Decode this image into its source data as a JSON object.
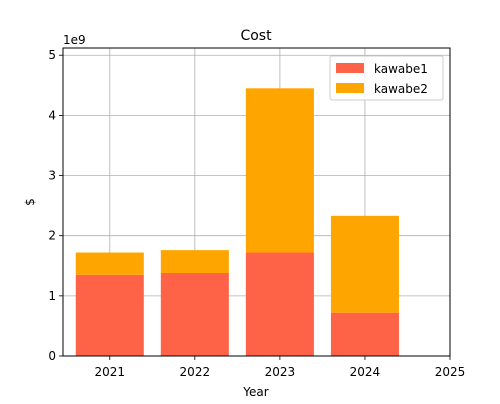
{
  "chart_data": {
    "type": "bar",
    "stacked": true,
    "title": "Cost",
    "xlabel": "Year",
    "ylabel": "$",
    "y_offset_label": "1e9",
    "categories": [
      2021,
      2022,
      2023,
      2024
    ],
    "x_ticks": [
      2021,
      2022,
      2023,
      2024,
      2025
    ],
    "xlim": [
      2020.45,
      2025.0
    ],
    "ylim": [
      0,
      5.12
    ],
    "y_ticks": [
      0,
      1,
      2,
      3,
      4,
      5
    ],
    "grid": true,
    "legend_position": "top-right",
    "series": [
      {
        "name": "kawabe1",
        "color": "#ff6347",
        "values": [
          1.35,
          1.38,
          1.72,
          0.72
        ]
      },
      {
        "name": "kawabe2",
        "color": "#ffa500",
        "values": [
          0.37,
          0.38,
          2.73,
          1.61
        ]
      }
    ]
  }
}
